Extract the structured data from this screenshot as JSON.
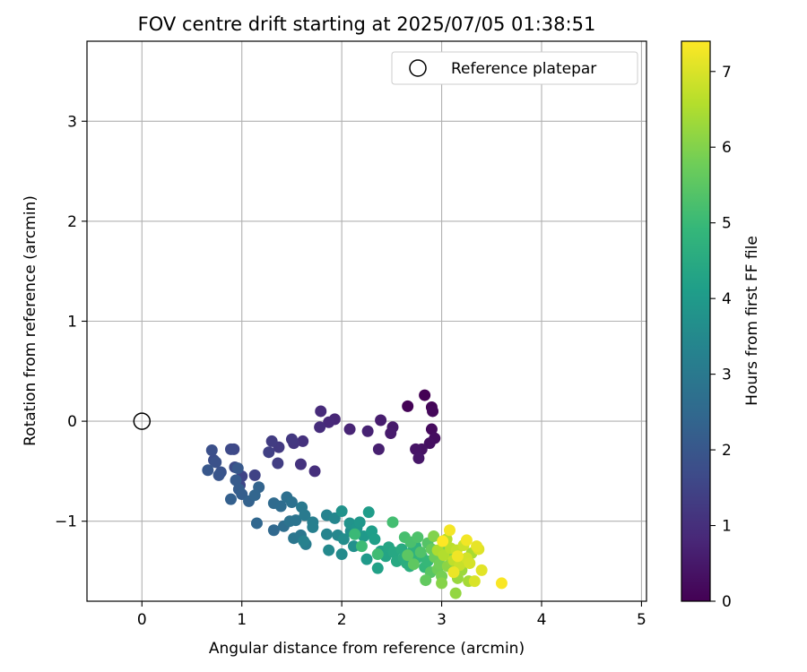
{
  "chart_data": {
    "type": "scatter",
    "title": "FOV centre drift starting at 2025/07/05 01:38:51",
    "xlabel": "Angular distance from reference (arcmin)",
    "ylabel": "Rotation from reference (arcmin)",
    "xlim": [
      -0.55,
      5.05
    ],
    "ylim": [
      -1.8,
      3.8
    ],
    "xticks": [
      0,
      1,
      2,
      3,
      4,
      5
    ],
    "xtick_labels": [
      "0",
      "1",
      "2",
      "3",
      "4",
      "5"
    ],
    "yticks": [
      -1,
      0,
      1,
      2,
      3
    ],
    "ytick_labels": [
      "−1",
      "0",
      "1",
      "2",
      "3"
    ],
    "grid": true,
    "legend": {
      "placement": "top-right",
      "entries": [
        {
          "label": "Reference platepar",
          "marker": "open-circle"
        }
      ]
    },
    "reference_point": {
      "x": 0,
      "y": 0
    },
    "colorbar": {
      "label": "Hours from first FF file",
      "colormap": "viridis",
      "range": [
        0,
        7.4
      ],
      "ticks": [
        0,
        1,
        2,
        3,
        4,
        5,
        6,
        7
      ],
      "tick_labels": [
        "0",
        "1",
        "2",
        "3",
        "4",
        "5",
        "6",
        "7"
      ]
    },
    "series": [
      {
        "points": [
          [
            2.83,
            0.26,
            0.0
          ],
          [
            2.66,
            0.15,
            0.05
          ],
          [
            2.9,
            0.14,
            0.1
          ],
          [
            2.91,
            0.1,
            0.15
          ],
          [
            2.9,
            -0.08,
            0.2
          ],
          [
            2.93,
            -0.17,
            0.25
          ],
          [
            2.88,
            -0.22,
            0.3
          ],
          [
            2.8,
            -0.28,
            0.35
          ],
          [
            2.74,
            -0.28,
            0.4
          ],
          [
            2.77,
            -0.37,
            0.45
          ],
          [
            2.51,
            -0.06,
            0.5
          ],
          [
            2.49,
            -0.12,
            0.55
          ],
          [
            2.39,
            0.01,
            0.6
          ],
          [
            2.37,
            -0.28,
            0.65
          ],
          [
            2.26,
            -0.1,
            0.7
          ],
          [
            2.08,
            -0.08,
            0.75
          ],
          [
            1.93,
            0.02,
            0.8
          ],
          [
            1.87,
            -0.01,
            0.85
          ],
          [
            1.79,
            0.1,
            0.9
          ],
          [
            1.78,
            -0.06,
            0.95
          ],
          [
            1.73,
            -0.5,
            1.0
          ],
          [
            1.61,
            -0.2,
            1.05
          ],
          [
            1.59,
            -0.43,
            1.1
          ],
          [
            1.52,
            -0.22,
            1.15
          ],
          [
            1.5,
            -0.18,
            1.2
          ],
          [
            1.37,
            -0.26,
            1.25
          ],
          [
            1.3,
            -0.2,
            1.3
          ],
          [
            1.36,
            -0.42,
            1.35
          ],
          [
            1.27,
            -0.31,
            1.4
          ],
          [
            1.13,
            -0.54,
            1.45
          ],
          [
            1.0,
            -0.55,
            1.5
          ],
          [
            0.98,
            -0.64,
            1.55
          ],
          [
            0.92,
            -0.28,
            1.6
          ],
          [
            0.89,
            -0.28,
            1.65
          ],
          [
            0.93,
            -0.46,
            1.7
          ],
          [
            0.72,
            -0.39,
            1.75
          ],
          [
            0.7,
            -0.29,
            1.8
          ],
          [
            0.74,
            -0.41,
            1.85
          ],
          [
            0.79,
            -0.51,
            1.9
          ],
          [
            0.77,
            -0.54,
            1.95
          ],
          [
            0.66,
            -0.49,
            2.0
          ],
          [
            0.96,
            -0.47,
            2.05
          ],
          [
            0.94,
            -0.59,
            2.1
          ],
          [
            0.97,
            -0.68,
            2.15
          ],
          [
            1.0,
            -0.73,
            2.2
          ],
          [
            0.89,
            -0.78,
            2.25
          ],
          [
            1.07,
            -0.8,
            2.3
          ],
          [
            1.17,
            -0.66,
            2.35
          ],
          [
            1.13,
            -0.74,
            2.4
          ],
          [
            1.15,
            -1.02,
            2.45
          ],
          [
            1.32,
            -1.09,
            2.5
          ],
          [
            1.32,
            -0.82,
            2.55
          ],
          [
            1.39,
            -0.85,
            2.6
          ],
          [
            1.42,
            -1.05,
            2.65
          ],
          [
            1.45,
            -0.76,
            2.7
          ],
          [
            1.5,
            -0.81,
            2.75
          ],
          [
            1.48,
            -1.0,
            2.8
          ],
          [
            1.54,
            -0.99,
            2.85
          ],
          [
            1.52,
            -1.17,
            2.9
          ],
          [
            1.59,
            -1.14,
            2.95
          ],
          [
            1.6,
            -0.86,
            3.0
          ],
          [
            1.63,
            -0.94,
            3.05
          ],
          [
            1.64,
            -1.23,
            3.1
          ],
          [
            1.71,
            -1.01,
            3.15
          ],
          [
            1.71,
            -1.06,
            3.2
          ],
          [
            1.62,
            -1.2,
            3.25
          ],
          [
            1.85,
            -0.94,
            3.3
          ],
          [
            1.85,
            -1.13,
            3.35
          ],
          [
            1.93,
            -0.97,
            3.4
          ],
          [
            1.96,
            -1.14,
            3.45
          ],
          [
            1.87,
            -1.29,
            3.5
          ],
          [
            2.0,
            -1.33,
            3.55
          ],
          [
            2.02,
            -1.18,
            3.6
          ],
          [
            2.09,
            -1.1,
            3.65
          ],
          [
            2.12,
            -1.25,
            3.7
          ],
          [
            2.0,
            -0.9,
            3.75
          ],
          [
            2.08,
            -1.02,
            3.8
          ],
          [
            2.15,
            -1.07,
            3.85
          ],
          [
            2.18,
            -1.01,
            3.9
          ],
          [
            2.22,
            -1.15,
            3.95
          ],
          [
            2.25,
            -1.38,
            4.0
          ],
          [
            2.27,
            -0.91,
            4.05
          ],
          [
            2.3,
            -1.1,
            4.1
          ],
          [
            2.33,
            -1.18,
            4.15
          ],
          [
            2.36,
            -1.47,
            4.2
          ],
          [
            2.39,
            -1.3,
            4.25
          ],
          [
            2.44,
            -1.35,
            4.3
          ],
          [
            2.47,
            -1.26,
            4.35
          ],
          [
            2.52,
            -1.31,
            4.4
          ],
          [
            2.55,
            -1.4,
            4.45
          ],
          [
            2.6,
            -1.28,
            4.5
          ],
          [
            2.62,
            -1.37,
            4.55
          ],
          [
            2.65,
            -1.42,
            4.6
          ],
          [
            2.68,
            -1.45,
            4.65
          ],
          [
            2.71,
            -1.3,
            4.7
          ],
          [
            2.74,
            -1.25,
            4.75
          ],
          [
            2.75,
            -1.37,
            4.8
          ],
          [
            2.8,
            -1.35,
            4.85
          ],
          [
            2.83,
            -1.46,
            4.9
          ],
          [
            2.86,
            -1.4,
            4.95
          ],
          [
            2.13,
            -1.13,
            5.0
          ],
          [
            2.2,
            -1.25,
            5.05
          ],
          [
            2.36,
            -1.33,
            5.1
          ],
          [
            2.51,
            -1.01,
            5.15
          ],
          [
            2.63,
            -1.16,
            5.2
          ],
          [
            2.69,
            -1.21,
            5.25
          ],
          [
            2.76,
            -1.16,
            5.3
          ],
          [
            2.79,
            -1.31,
            5.35
          ],
          [
            2.86,
            -1.22,
            5.4
          ],
          [
            2.89,
            -1.51,
            5.45
          ],
          [
            2.66,
            -1.34,
            5.5
          ],
          [
            2.72,
            -1.43,
            5.55
          ],
          [
            2.84,
            -1.59,
            5.6
          ],
          [
            2.9,
            -1.28,
            5.65
          ],
          [
            2.93,
            -1.36,
            5.7
          ],
          [
            2.96,
            -1.48,
            5.75
          ],
          [
            2.98,
            -1.43,
            5.8
          ],
          [
            3.0,
            -1.55,
            5.85
          ],
          [
            3.04,
            -1.24,
            5.9
          ],
          [
            3.06,
            -1.3,
            5.95
          ],
          [
            2.92,
            -1.15,
            6.0
          ],
          [
            3.0,
            -1.62,
            6.05
          ],
          [
            3.06,
            -1.45,
            6.1
          ],
          [
            3.1,
            -1.41,
            6.15
          ],
          [
            3.14,
            -1.72,
            6.2
          ],
          [
            3.16,
            -1.57,
            6.25
          ],
          [
            3.2,
            -1.49,
            6.3
          ],
          [
            3.24,
            -1.38,
            6.35
          ],
          [
            3.27,
            -1.6,
            6.4
          ],
          [
            3.3,
            -1.32,
            6.45
          ],
          [
            2.96,
            -1.29,
            6.5
          ],
          [
            3.02,
            -1.34,
            6.55
          ],
          [
            3.05,
            -1.18,
            6.6
          ],
          [
            3.09,
            -1.27,
            6.65
          ],
          [
            3.12,
            -1.39,
            6.7
          ],
          [
            3.15,
            -1.29,
            6.75
          ],
          [
            3.18,
            -1.44,
            6.8
          ],
          [
            3.22,
            -1.24,
            6.85
          ],
          [
            3.25,
            -1.37,
            6.9
          ],
          [
            3.28,
            -1.42,
            6.95
          ],
          [
            3.33,
            -1.6,
            7.0
          ],
          [
            3.37,
            -1.28,
            7.05
          ],
          [
            3.4,
            -1.49,
            7.1
          ],
          [
            3.35,
            -1.25,
            7.15
          ],
          [
            3.12,
            -1.51,
            7.2
          ],
          [
            3.16,
            -1.35,
            7.25
          ],
          [
            3.25,
            -1.19,
            7.28
          ],
          [
            3.08,
            -1.09,
            7.3
          ],
          [
            3.6,
            -1.62,
            7.35
          ],
          [
            3.01,
            -1.2,
            7.4
          ]
        ]
      }
    ]
  }
}
